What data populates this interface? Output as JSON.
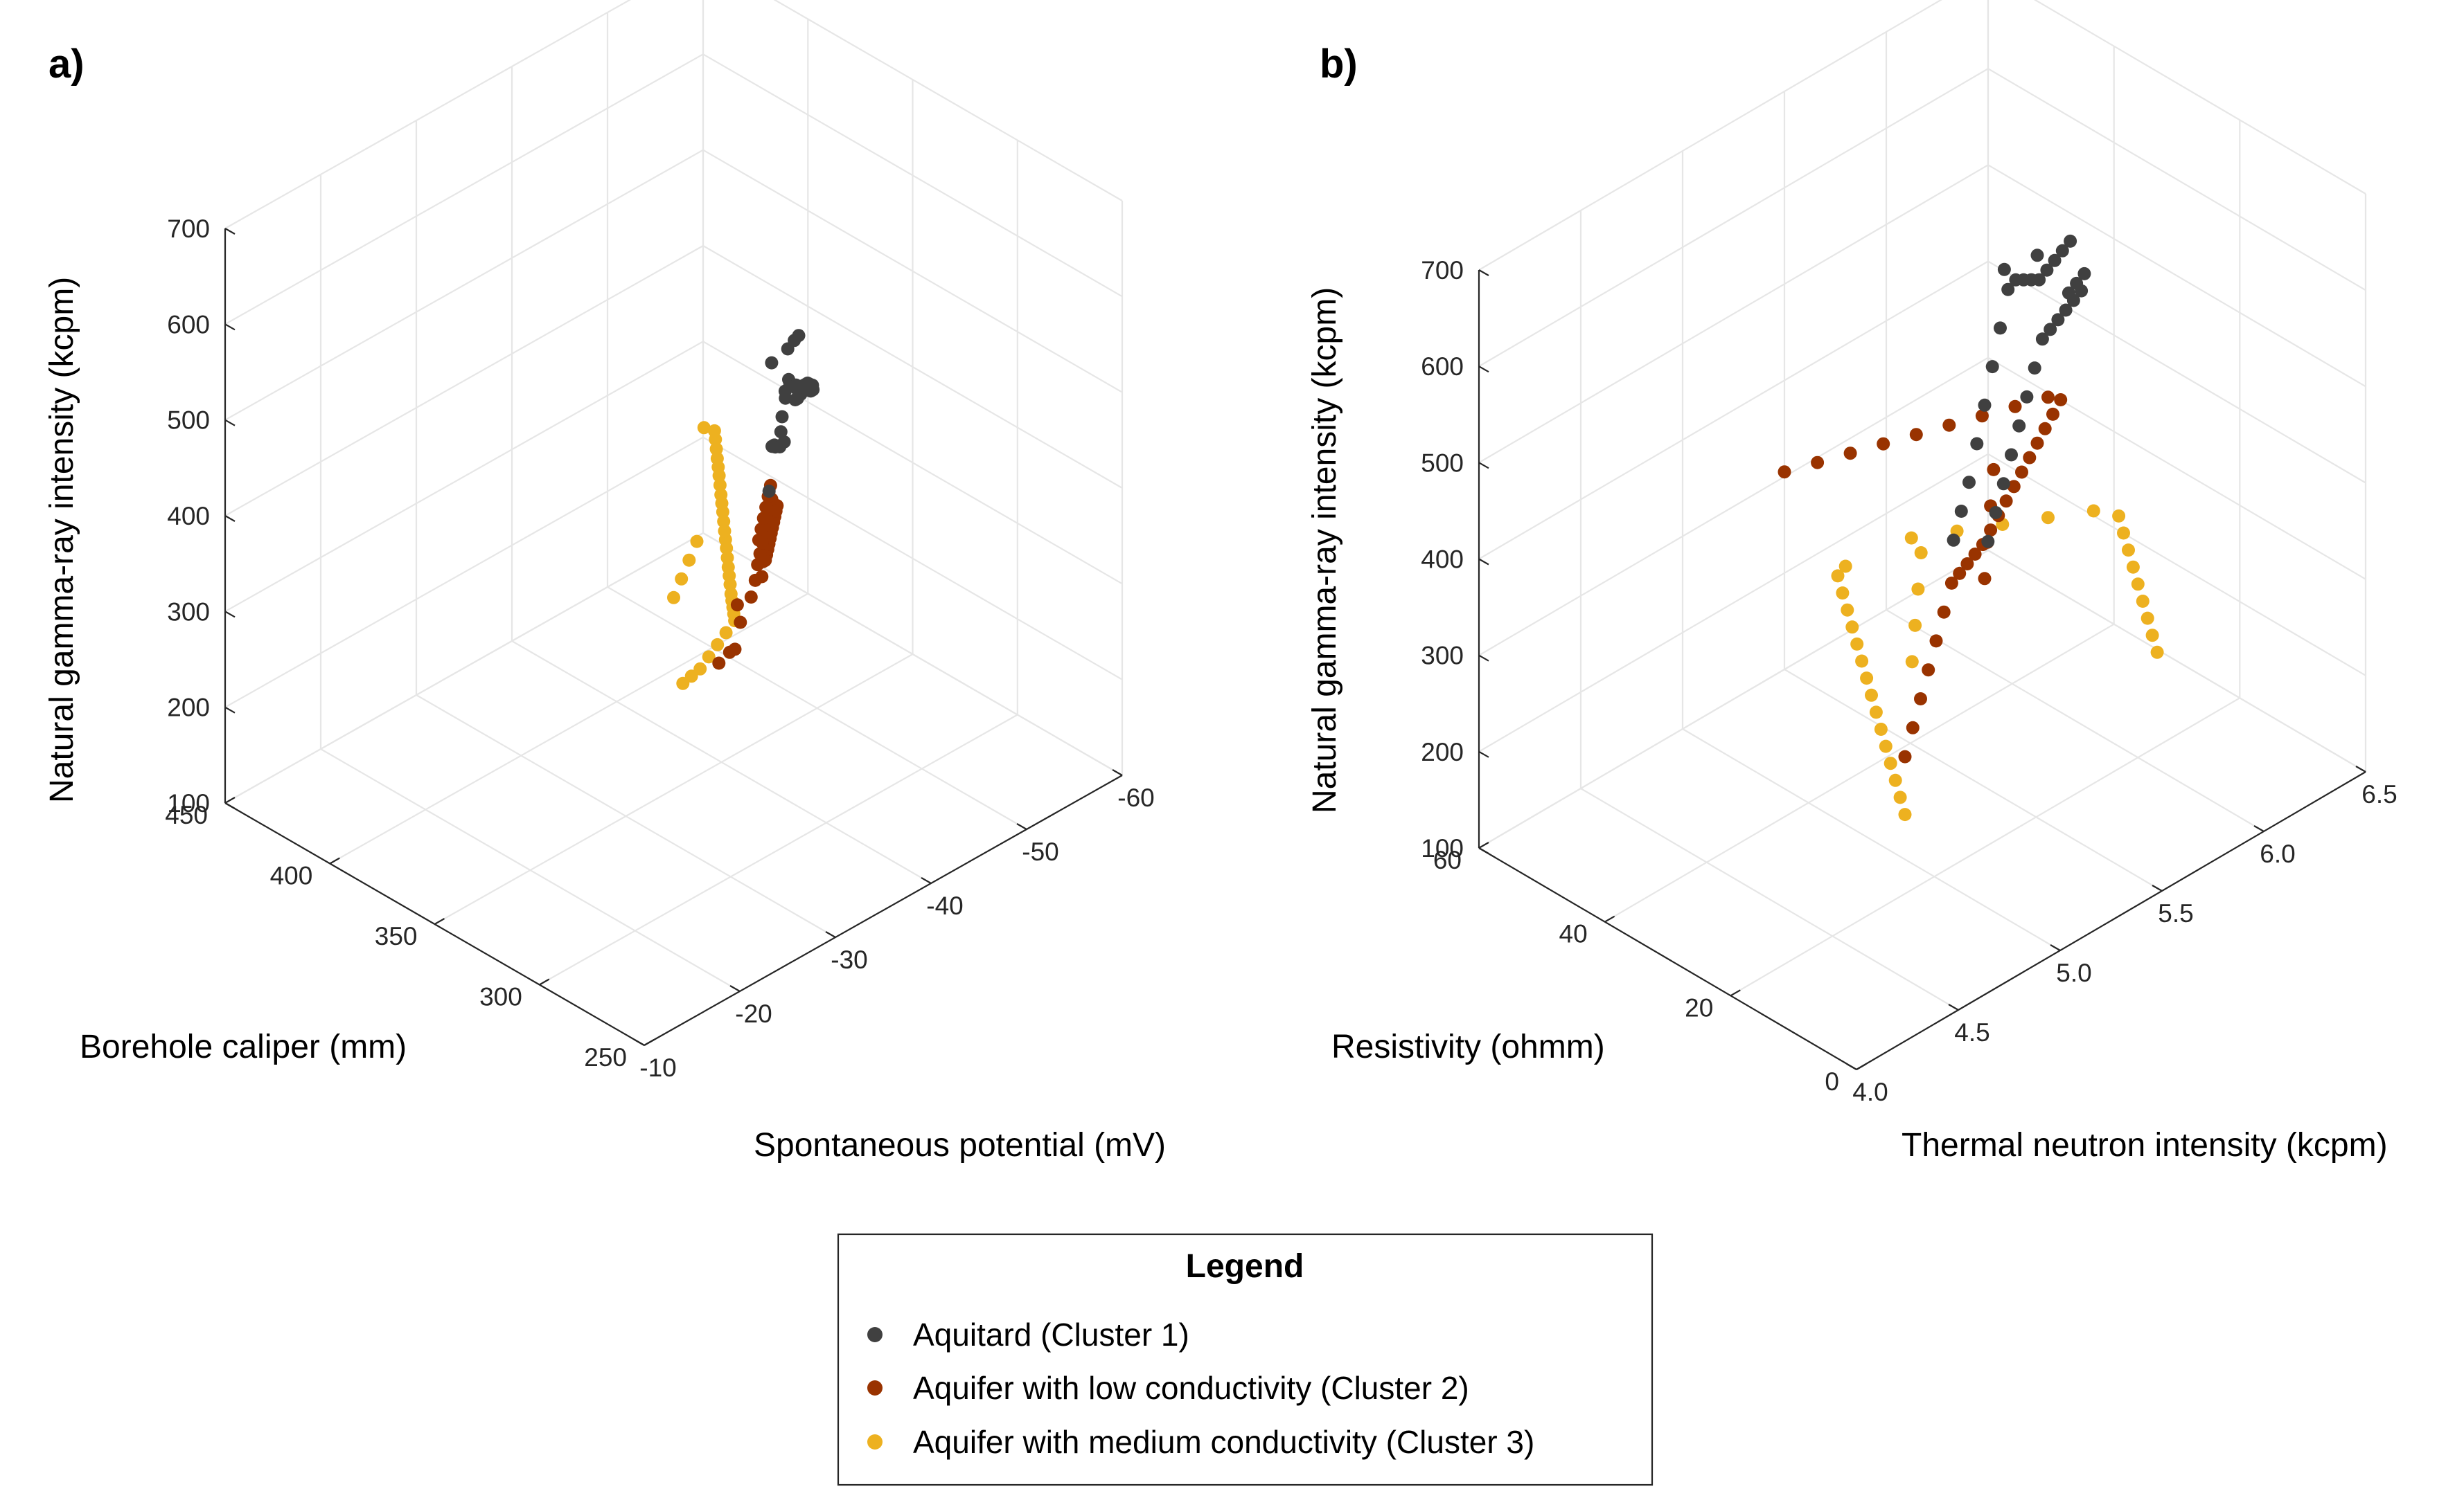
{
  "colors": {
    "cluster1": "#404040",
    "cluster2": "#993300",
    "cluster3": "#edb120",
    "grid": "#e6e6e6",
    "axis": "#262626"
  },
  "legend": {
    "title": "Legend",
    "items": [
      {
        "label": "Aquitard (Cluster 1)",
        "color": "#404040"
      },
      {
        "label": "Aquifer with low conductivity (Cluster 2)",
        "color": "#993300"
      },
      {
        "label": "Aquifer with medium conductivity (Cluster 3)",
        "color": "#edb120"
      }
    ]
  },
  "chart_data": [
    {
      "type": "scatter",
      "panel_label": "a)",
      "xlabel": "Borehole caliper (mm)",
      "ylabel": "Spontaneous potential (mV)",
      "zlabel": "Natural gamma-ray intensity (kcpm)",
      "xlim": [
        250,
        450
      ],
      "ylim": [
        -10,
        -60
      ],
      "zlim": [
        100,
        700
      ],
      "xticks": [
        "250",
        "300",
        "350",
        "400",
        "450"
      ],
      "yticks": [
        "-10",
        "-20",
        "-30",
        "-40",
        "-50",
        "-60"
      ],
      "zticks": [
        "100",
        "200",
        "300",
        "400",
        "500",
        "600",
        "700"
      ],
      "series": [
        {
          "name": "Aquitard (Cluster 1)",
          "color": "#404040",
          "x": [
            262,
            265,
            270,
            272,
            276,
            280,
            283,
            286,
            290,
            292,
            296,
            300,
            303,
            306,
            310,
            312,
            316,
            320,
            274,
            278,
            282,
            288,
            294,
            298,
            302,
            308,
            314,
            318,
            285,
            291,
            297,
            304,
            268,
            279
          ],
          "y": [
            -26,
            -27,
            -28,
            -29,
            -30,
            -31,
            -32,
            -33,
            -34,
            -35,
            -36,
            -37,
            -38,
            -39,
            -40,
            -41,
            -42,
            -43,
            -30,
            -32,
            -33,
            -35,
            -36,
            -37,
            -39,
            -40,
            -41,
            -42,
            -31,
            -34,
            -36,
            -38,
            -27,
            -31
          ],
          "z": [
            620,
            610,
            600,
            590,
            595,
            600,
            610,
            620,
            605,
            580,
            570,
            560,
            555,
            550,
            540,
            530,
            520,
            510,
            640,
            630,
            615,
            600,
            585,
            575,
            560,
            548,
            535,
            525,
            650,
            640,
            630,
            615,
            560,
            575
          ]
        },
        {
          "name": "Aquifer with low conductivity (Cluster 2)",
          "color": "#993300",
          "x": [
            260,
            264,
            268,
            272,
            276,
            280,
            284,
            288,
            292,
            296,
            300,
            304,
            308,
            312,
            316,
            320,
            324,
            328,
            270,
            278,
            286,
            294,
            302,
            310,
            318,
            326,
            282,
            290,
            298,
            306,
            314,
            322,
            266,
            274
          ],
          "y": [
            -20,
            -22,
            -24,
            -26,
            -28,
            -29,
            -30,
            -31,
            -32,
            -33,
            -34,
            -35,
            -36,
            -37,
            -38,
            -39,
            -40,
            -41,
            -26,
            -28,
            -30,
            -32,
            -34,
            -36,
            -38,
            -40,
            -29,
            -31,
            -33,
            -35,
            -37,
            -39,
            -23,
            -25
          ],
          "z": [
            430,
            425,
            440,
            450,
            455,
            460,
            450,
            440,
            435,
            430,
            425,
            420,
            415,
            410,
            405,
            400,
            395,
            390,
            470,
            465,
            455,
            445,
            435,
            425,
            415,
            405,
            480,
            470,
            460,
            450,
            440,
            430,
            420,
            445
          ]
        },
        {
          "name": "Aquifer with medium conductivity (Cluster 3)",
          "color": "#edb120",
          "x": [
            300,
            305,
            310,
            315,
            320,
            325,
            330,
            335,
            340,
            345,
            350,
            355,
            360,
            365,
            370,
            375,
            380,
            385,
            390,
            395,
            400,
            405,
            410,
            415,
            420,
            425,
            430,
            435,
            440,
            445,
            350,
            360,
            370,
            380
          ],
          "y": [
            -25,
            -27,
            -29,
            -31,
            -33,
            -35,
            -37,
            -38,
            -39,
            -40,
            -41,
            -42,
            -43,
            -44,
            -45,
            -46,
            -47,
            -48,
            -49,
            -50,
            -51,
            -52,
            -53,
            -54,
            -55,
            -56,
            -57,
            -58,
            -59,
            -59,
            -35,
            -38,
            -41,
            -44
          ],
          "z": [
            330,
            320,
            310,
            305,
            300,
            295,
            290,
            285,
            280,
            275,
            270,
            268,
            265,
            262,
            260,
            258,
            255,
            252,
            250,
            248,
            245,
            242,
            240,
            238,
            235,
            232,
            230,
            228,
            225,
            222,
            300,
            290,
            280,
            270
          ]
        }
      ]
    },
    {
      "type": "scatter",
      "panel_label": "b)",
      "xlabel": "Resistivity (ohmm)",
      "ylabel": "Thermal neutron intensity (kcpm)",
      "zlabel": "Natural gamma-ray intensity (kcpm)",
      "xlim": [
        0,
        60
      ],
      "ylim": [
        4.0,
        6.5
      ],
      "zlim": [
        100,
        700
      ],
      "xticks": [
        "0",
        "20",
        "40",
        "60"
      ],
      "yticks": [
        "4.0",
        "4.5",
        "5.0",
        "5.5",
        "6.0",
        "6.5"
      ],
      "zticks": [
        "100",
        "200",
        "300",
        "400",
        "500",
        "600",
        "700"
      ],
      "series": [
        {
          "name": "Aquitard (Cluster 1)",
          "color": "#404040",
          "x": [
            4,
            6,
            8,
            10,
            12,
            14,
            16,
            18,
            20,
            22,
            24,
            26,
            28,
            30,
            32,
            34,
            36,
            38,
            5,
            7,
            9,
            11,
            13,
            15,
            17,
            19,
            21,
            23,
            25,
            27,
            29,
            31,
            33,
            35
          ],
          "y": [
            4.6,
            4.7,
            4.8,
            4.9,
            5.0,
            5.1,
            5.2,
            5.3,
            5.4,
            5.5,
            5.6,
            5.7,
            5.8,
            5.9,
            6.0,
            6.1,
            6.0,
            5.9,
            4.8,
            4.9,
            5.0,
            5.1,
            5.2,
            5.3,
            5.4,
            5.5,
            5.6,
            5.7,
            5.8,
            5.9,
            6.0,
            6.0,
            6.1,
            6.2
          ],
          "z": [
            560,
            570,
            580,
            600,
            620,
            640,
            660,
            680,
            670,
            650,
            630,
            610,
            600,
            590,
            580,
            570,
            560,
            550,
            530,
            540,
            550,
            560,
            570,
            580,
            590,
            600,
            590,
            580,
            570,
            560,
            550,
            540,
            530,
            520
          ]
        },
        {
          "name": "Aquifer with low conductivity (Cluster 2)",
          "color": "#993300",
          "x": [
            2,
            4,
            6,
            8,
            10,
            12,
            14,
            16,
            18,
            20,
            22,
            24,
            26,
            28,
            30,
            32,
            34,
            36,
            38,
            40,
            42,
            44,
            46,
            48,
            50,
            52,
            54,
            56,
            58,
            60,
            12,
            18,
            24,
            30
          ],
          "y": [
            4.3,
            4.4,
            4.5,
            4.6,
            4.7,
            4.8,
            4.9,
            5.0,
            5.1,
            5.2,
            5.3,
            5.4,
            5.5,
            5.6,
            5.7,
            5.8,
            5.9,
            6.0,
            6.1,
            6.2,
            6.3,
            6.3,
            6.2,
            6.1,
            6.0,
            5.9,
            5.8,
            5.7,
            5.6,
            5.5,
            5.0,
            5.2,
            5.4,
            5.6
          ],
          "z": [
            380,
            390,
            400,
            410,
            420,
            430,
            440,
            430,
            420,
            410,
            400,
            395,
            390,
            385,
            380,
            375,
            370,
            365,
            360,
            355,
            350,
            345,
            340,
            335,
            330,
            325,
            320,
            315,
            310,
            305,
            440,
            430,
            420,
            410
          ]
        },
        {
          "name": "Aquifer with medium conductivity (Cluster 3)",
          "color": "#edb120",
          "x": [
            2,
            6,
            10,
            14,
            18,
            22,
            26,
            30,
            34,
            38,
            42,
            46,
            50,
            54,
            58,
            60,
            56,
            52,
            48,
            44,
            40,
            36,
            32,
            28,
            24,
            20,
            16,
            12,
            8,
            4,
            30,
            36,
            42,
            48
          ],
          "y": [
            4.3,
            4.4,
            4.5,
            4.6,
            4.7,
            4.8,
            4.9,
            5.0,
            5.1,
            5.2,
            5.3,
            5.4,
            5.5,
            5.6,
            5.7,
            5.8,
            6.0,
            6.1,
            6.2,
            6.3,
            6.4,
            6.4,
            6.3,
            6.2,
            6.1,
            6.0,
            5.9,
            5.8,
            5.7,
            5.6,
            5.2,
            5.4,
            5.6,
            5.8
          ],
          "z": [
            320,
            310,
            300,
            290,
            280,
            270,
            260,
            250,
            240,
            230,
            220,
            210,
            200,
            190,
            180,
            170,
            190,
            200,
            210,
            220,
            230,
            240,
            250,
            260,
            270,
            280,
            290,
            300,
            310,
            320,
            260,
            250,
            240,
            230
          ]
        }
      ]
    }
  ]
}
